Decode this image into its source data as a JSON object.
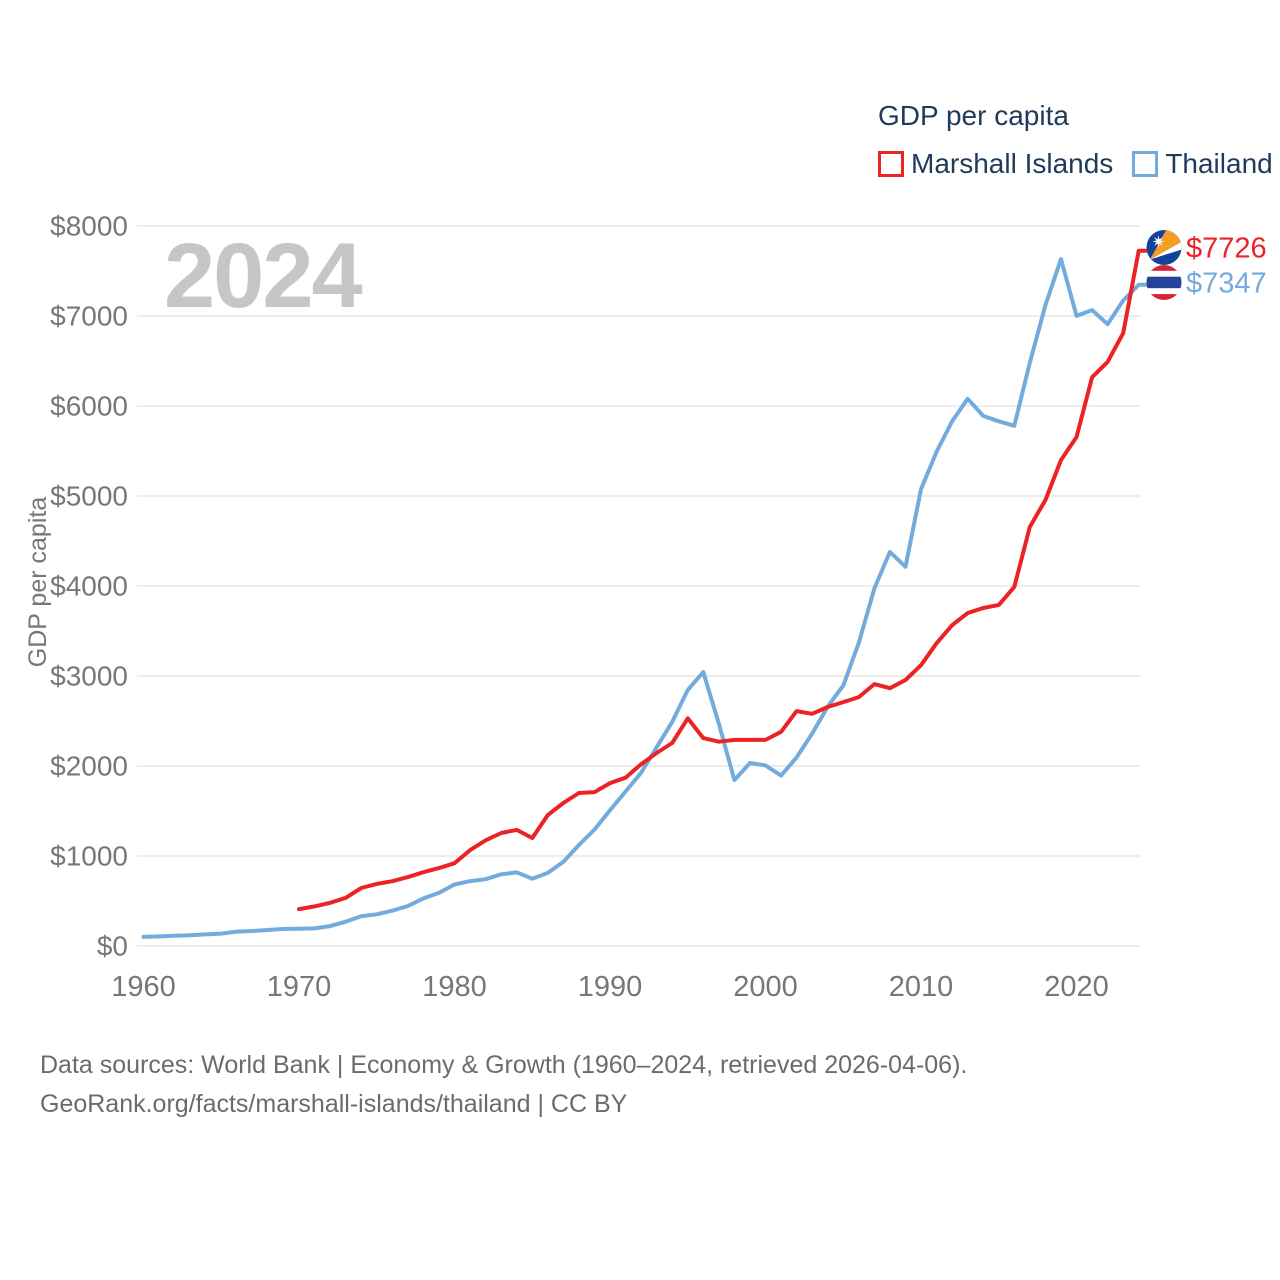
{
  "watermark": "2024",
  "legend": {
    "title": "GDP per capita",
    "items": [
      {
        "label": "Marshall Islands",
        "color": "#ed2224"
      },
      {
        "label": "Thailand",
        "color": "#74abdd"
      }
    ]
  },
  "chart_data": {
    "type": "line",
    "title": "GDP per capita",
    "ylabel": "GDP per capita",
    "xlabel": "",
    "ylim": [
      0,
      8000
    ],
    "xlim": [
      1960,
      2024
    ],
    "grid": "horizontal",
    "legend_position": "top-right",
    "yticks": [
      {
        "value": 0,
        "label": "$0"
      },
      {
        "value": 1000,
        "label": "$1000"
      },
      {
        "value": 2000,
        "label": "$2000"
      },
      {
        "value": 3000,
        "label": "$3000"
      },
      {
        "value": 4000,
        "label": "$4000"
      },
      {
        "value": 5000,
        "label": "$5000"
      },
      {
        "value": 6000,
        "label": "$6000"
      },
      {
        "value": 7000,
        "label": "$7000"
      },
      {
        "value": 8000,
        "label": "$8000"
      }
    ],
    "xticks": [
      {
        "value": 1960,
        "label": "1960"
      },
      {
        "value": 1970,
        "label": "1970"
      },
      {
        "value": 1980,
        "label": "1980"
      },
      {
        "value": 1990,
        "label": "1990"
      },
      {
        "value": 2000,
        "label": "2000"
      },
      {
        "value": 2010,
        "label": "2010"
      },
      {
        "value": 2020,
        "label": "2020"
      }
    ],
    "series": [
      {
        "name": "Thailand",
        "color": "#74abdd",
        "start_year": 1970,
        "start_year_actual": 1960,
        "values": [
          101,
          107,
          114,
          120,
          129,
          138,
          160,
          167,
          178,
          190,
          192,
          196,
          221,
          270,
          331,
          352,
          392,
          445,
          529,
          590,
          683,
          721,
          742,
          797,
          818,
          748,
          812,
          936,
          1122,
          1294,
          1508,
          1716,
          1926,
          2208,
          2490,
          2846,
          3043,
          2468,
          1845,
          2033,
          2007,
          1893,
          2096,
          2359,
          2660,
          2894,
          3369,
          3973,
          4379,
          4213,
          5076,
          5492,
          5830,
          6080,
          5890,
          5830,
          5780,
          6480,
          7120,
          7632,
          7001,
          7066,
          6909,
          7172,
          7347
        ]
      },
      {
        "name": "Marshall Islands",
        "color": "#ed2224",
        "start_year": 1970,
        "start_year_actual": 1970,
        "values": [
          410,
          440,
          480,
          535,
          645,
          690,
          720,
          765,
          820,
          865,
          920,
          1065,
          1175,
          1255,
          1290,
          1200,
          1455,
          1590,
          1700,
          1710,
          1810,
          1870,
          2020,
          2145,
          2255,
          2530,
          2310,
          2270,
          2290,
          2290,
          2290,
          2380,
          2610,
          2580,
          2655,
          2710,
          2765,
          2910,
          2865,
          2955,
          3120,
          3365,
          3565,
          3700,
          3755,
          3790,
          3990,
          4655,
          4955,
          5400,
          5655,
          6320,
          6490,
          6810,
          7726
        ]
      }
    ],
    "end_labels": [
      {
        "text": "$7726",
        "series": "Marshall Islands",
        "color": "#ed2224",
        "flag": "marshall-islands"
      },
      {
        "text": "$7347",
        "series": "Thailand",
        "color": "#74abdd",
        "flag": "thailand"
      }
    ],
    "flag_colors": {
      "marshall_islands": {
        "base": "#11439b",
        "star": "#ffffff",
        "band_upper": "#f79d23",
        "band_lower": "#ffffff"
      },
      "thailand": {
        "red": "#d62336",
        "white": "#ffffff",
        "blue": "#24439b"
      }
    },
    "gridline_color": "#e7e7e7",
    "tick_color": "#777777"
  },
  "footer": {
    "line1": "Data sources: World Bank | Economy & Growth (1960–2024, retrieved 2026-04-06).",
    "line2": "GeoRank.org/facts/marshall-islands/thailand | CC BY"
  }
}
